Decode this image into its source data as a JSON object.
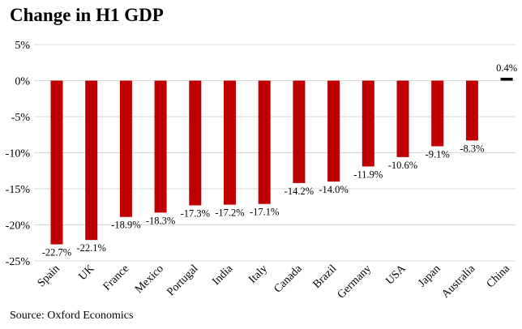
{
  "chart_data": {
    "type": "bar",
    "title": "Change in H1 GDP",
    "source": "Source: Oxford Economics",
    "categories": [
      "Spain",
      "UK",
      "France",
      "Mexico",
      "Portugal",
      "India",
      "Italy",
      "Canada",
      "Brazil",
      "Germany",
      "USA",
      "Japan",
      "Australia",
      "China"
    ],
    "values": [
      -22.7,
      -22.1,
      -18.9,
      -18.3,
      -17.3,
      -17.2,
      -17.1,
      -14.2,
      -14.0,
      -11.9,
      -10.6,
      -9.1,
      -8.3,
      0.4
    ],
    "data_labels": [
      "-22.7%",
      "-22.1%",
      "-18.9%",
      "-18.3%",
      "-17.3%",
      "-17.2%",
      "-17.1%",
      "-14.2%",
      "-14.0%",
      "-11.9%",
      "-10.6%",
      "-9.1%",
      "-8.3%",
      "0.4%"
    ],
    "yticks": [
      5,
      0,
      -5,
      -10,
      -15,
      -20,
      -25
    ],
    "ytick_labels": [
      "5%",
      "0%",
      "-5%",
      "-10%",
      "-15%",
      "-20%",
      "-25%"
    ],
    "ylim": [
      -25,
      5
    ],
    "xlabel": "",
    "ylabel": "",
    "grid": true,
    "colors": {
      "negative": "#C00000",
      "positive": "#000000",
      "grid": "#D9D9D9"
    }
  }
}
